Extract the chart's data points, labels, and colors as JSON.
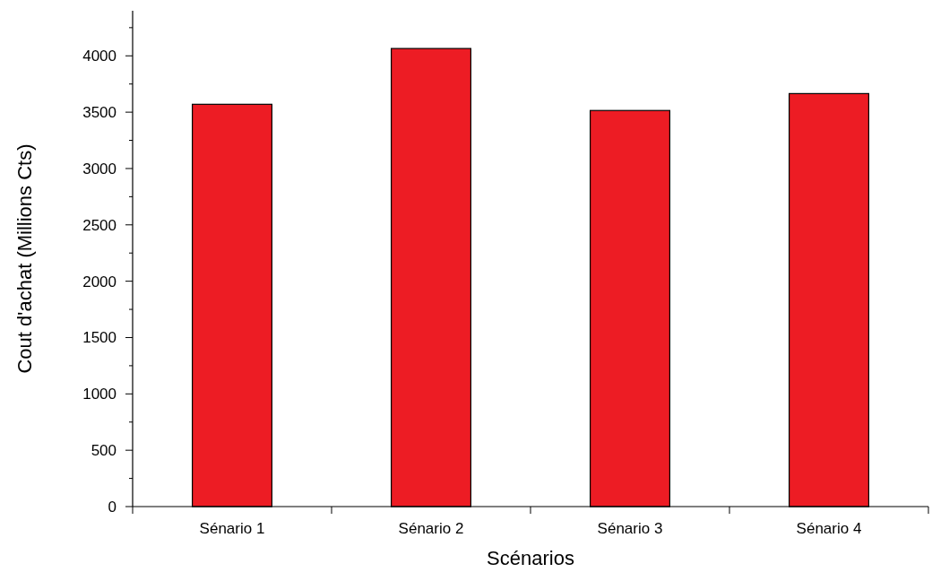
{
  "chart_data": {
    "type": "bar",
    "xlabel": "Scénarios",
    "ylabel": "Cout  d'achat (Millions Cts)",
    "categories": [
      "Sénario 1",
      "Sénario 2",
      "Sénario 3",
      "Sénario 4"
    ],
    "values": [
      3570,
      4065,
      3515,
      3665
    ],
    "color": "#ed1c24",
    "ylim": [
      0,
      4400
    ],
    "yticks": [
      0,
      {
        "value": 250,
        "label": null
      },
      500,
      {
        "value": 750,
        "label": null
      },
      1000,
      {
        "value": 1250,
        "label": null
      },
      1500,
      {
        "value": 1750,
        "label": null
      },
      2000,
      {
        "value": 2250,
        "label": null
      },
      2500,
      {
        "value": 2750,
        "label": null
      },
      3000,
      {
        "value": 3250,
        "label": null
      },
      3500,
      {
        "value": 3750,
        "label": null
      },
      4000,
      {
        "value": 4250,
        "label": null
      }
    ],
    "grid": false
  }
}
